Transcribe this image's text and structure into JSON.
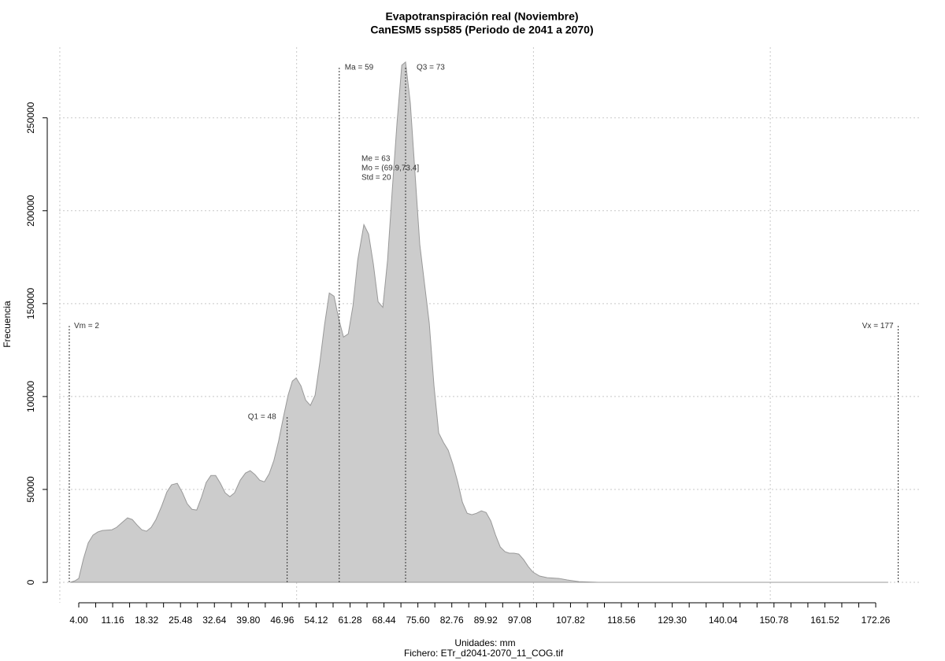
{
  "chart_data": {
    "type": "area",
    "title": "Evapotranspiración real (Noviembre)",
    "subtitle": "CanESM5 ssp585 (Periodo de 2041 a 2070)",
    "x_label": "Unidades: mm",
    "file_label": "Fichero: ETr_d2041-2070_11_COG.tif",
    "y_label": "Frecuencia",
    "color": "#cccccc",
    "line_color": "#999999",
    "x": [
      2.2,
      3.2,
      4.0,
      5.0,
      6.0,
      7.0,
      8.0,
      9.0,
      11.0,
      12.0,
      13.1,
      14.3,
      15.3,
      16.3,
      17.3,
      18.3,
      19.3,
      20.3,
      21.5,
      22.6,
      23.6,
      24.8,
      25.9,
      26.9,
      27.9,
      28.9,
      29.9,
      30.9,
      31.9,
      32.9,
      33.9,
      34.9,
      35.9,
      36.9,
      38.1,
      39.2,
      40.2,
      41.2,
      42.2,
      43.2,
      44.2,
      45.2,
      46.2,
      47.2,
      48.2,
      49.1,
      49.9,
      50.9,
      51.9,
      52.9,
      53.9,
      54.9,
      55.9,
      56.9,
      57.9,
      58.9,
      59.9,
      60.9,
      61.9,
      62.9,
      64.2,
      65.2,
      66.2,
      67.2,
      68.2,
      69.2,
      70.2,
      71.2,
      72.2,
      73.0,
      74.0,
      75.0,
      76.0,
      77.0,
      78.0,
      79.0,
      80.0,
      81.0,
      82.0,
      83.0,
      84.0,
      85.0,
      86.0,
      87.0,
      88.0,
      89.0,
      90.0,
      91.0,
      92.0,
      93.0,
      94.0,
      94.9,
      95.9,
      96.9,
      97.9,
      98.9,
      99.9,
      101.3,
      102.9,
      105.4,
      107.1,
      109.6,
      113.7,
      174.9
    ],
    "values": [
      0,
      800,
      2100,
      12700,
      21200,
      25400,
      27100,
      27900,
      28300,
      29600,
      32100,
      34700,
      33800,
      30900,
      28300,
      27500,
      29600,
      33800,
      41000,
      48600,
      52500,
      53300,
      48200,
      42300,
      39300,
      38900,
      45700,
      53700,
      57500,
      57500,
      53300,
      48200,
      46100,
      48200,
      55000,
      58800,
      60100,
      58000,
      55000,
      54100,
      58400,
      65600,
      76100,
      88800,
      100700,
      108300,
      110000,
      105800,
      98100,
      95200,
      100700,
      118400,
      138700,
      155700,
      154000,
      141700,
      132000,
      133700,
      148900,
      173400,
      192500,
      187400,
      171300,
      151000,
      148000,
      173400,
      211500,
      247500,
      278300,
      280000,
      258000,
      220000,
      181900,
      160700,
      139600,
      105800,
      80400,
      75300,
      71100,
      63500,
      54100,
      43100,
      37200,
      36400,
      37200,
      38500,
      37600,
      33000,
      25400,
      19000,
      16500,
      15700,
      15700,
      15200,
      12300,
      8500,
      5500,
      3400,
      2500,
      2100,
      1300,
      400,
      0,
      0
    ],
    "xlim": [
      -2.65,
      181.9
    ],
    "ylim": [
      -11000,
      288000
    ],
    "yticks": [
      0,
      50000,
      100000,
      150000,
      200000,
      250000
    ],
    "xticks": [
      {
        "value": 4,
        "label": "4.00"
      },
      11.16,
      18.32,
      25.48,
      32.64,
      {
        "value": 39.8,
        "label": "39.80"
      },
      46.96,
      54.12,
      61.28,
      68.44,
      {
        "value": 75.6,
        "label": "75.60"
      },
      82.76,
      89.92,
      97.08,
      107.82,
      118.56,
      {
        "value": 129.3,
        "label": "129.30"
      },
      140.04,
      150.78,
      161.52,
      172.26
    ],
    "xminorticks": [
      7.58,
      14.74,
      21.9,
      29.06,
      36.22,
      43.38,
      50.54,
      57.7,
      64.86,
      72.02,
      79.18,
      86.34,
      93.5,
      100.66,
      104.24,
      111.4,
      114.98,
      122.14,
      125.72,
      132.88,
      136.46,
      143.62,
      147.2,
      154.36,
      157.94,
      165.1,
      168.68
    ],
    "xgrid": [
      0,
      50,
      100,
      150
    ],
    "grid": true,
    "markers": [
      {
        "label": "Vm = 2",
        "x": 2,
        "y": 138000
      },
      {
        "label": "Ma = 59",
        "x": 59,
        "y": 277000
      },
      {
        "label": "Q1 = 48",
        "x": 48,
        "y": 89000
      },
      {
        "label": "Q3 = 73",
        "x": 73,
        "y": 277000
      },
      {
        "label": "Vx = 177",
        "x": 177,
        "y": 138000
      }
    ],
    "stats": [
      "Me = 63",
      "Mo = (69.9,73.4]",
      "Std = 20"
    ]
  }
}
